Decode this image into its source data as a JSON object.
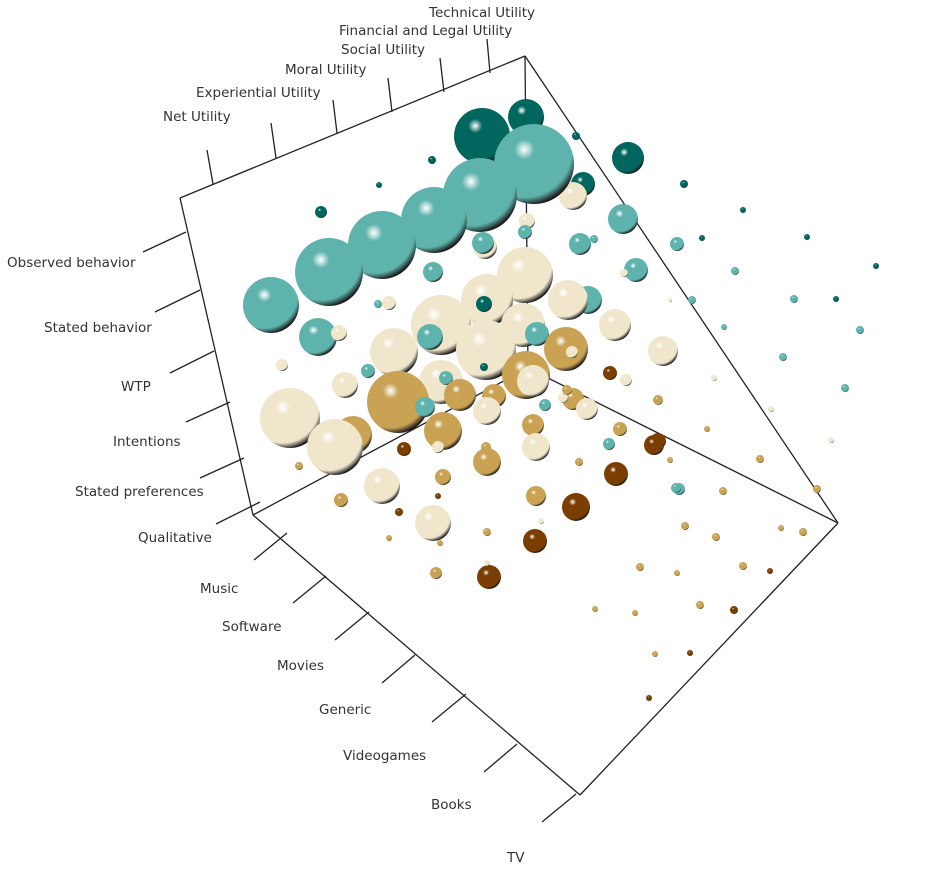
{
  "chart_data": {
    "type": "scatter",
    "subtype": "3d-bubble",
    "title": "",
    "axes": {
      "utility": [
        "Net Utility",
        "Experiential Utility",
        "Moral Utility",
        "Social Utility",
        "Financial and Legal Utility",
        "Technical Utility"
      ],
      "method": [
        "Observed behavior",
        "Stated behavior",
        "WTP",
        "Intentions",
        "Stated preferences",
        "Qualitative"
      ],
      "domain": [
        "Music",
        "Software",
        "Movies",
        "Generic",
        "Videogames",
        "Books",
        "TV"
      ]
    },
    "color_scale": {
      "low": "#7a3f00",
      "mid_low": "#c9a253",
      "neutral": "#f0e6cc",
      "mid_high": "#5fb3ad",
      "high": "#01665e"
    },
    "grid": false,
    "legend": "none"
  }
}
